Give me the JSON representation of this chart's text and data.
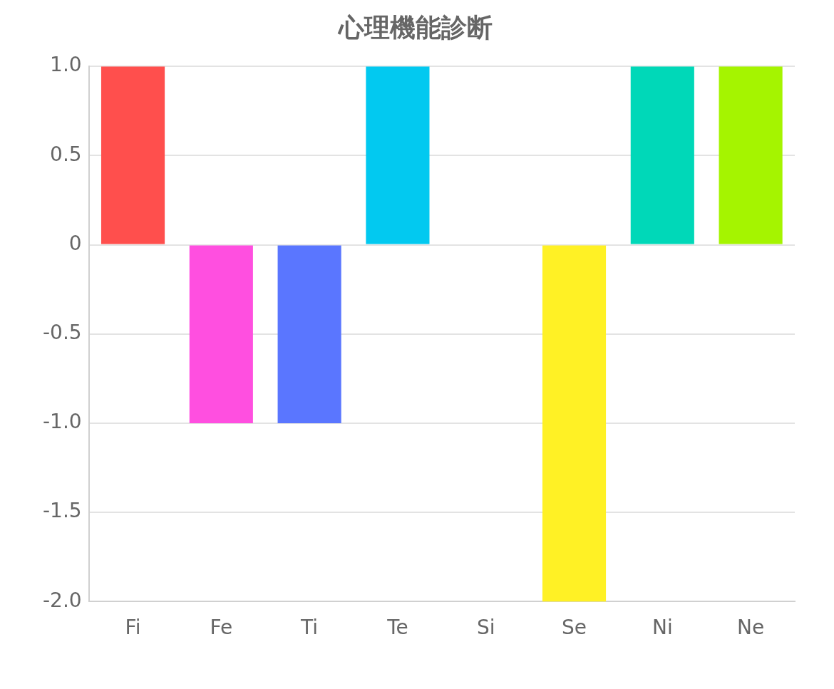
{
  "chart_data": {
    "type": "bar",
    "title": "心理機能診断",
    "categories": [
      "Fi",
      "Fe",
      "Ti",
      "Te",
      "Si",
      "Se",
      "Ni",
      "Ne"
    ],
    "values": [
      1,
      -1,
      -1,
      1,
      0,
      -2,
      1,
      1
    ],
    "colors": [
      "#ff4f4d",
      "#ff4fe0",
      "#5a76ff",
      "#02c9f0",
      "#cccccc",
      "#fff125",
      "#00d8b8",
      "#a5f400"
    ],
    "ylim": [
      -2,
      1
    ],
    "yticks": [
      {
        "value": 1,
        "label": "1.0"
      },
      0.5,
      0,
      -0.5,
      {
        "value": -1,
        "label": "-1.0"
      },
      -1.5,
      {
        "value": -2,
        "label": "-2.0"
      }
    ],
    "grid": "y",
    "legend": false
  }
}
